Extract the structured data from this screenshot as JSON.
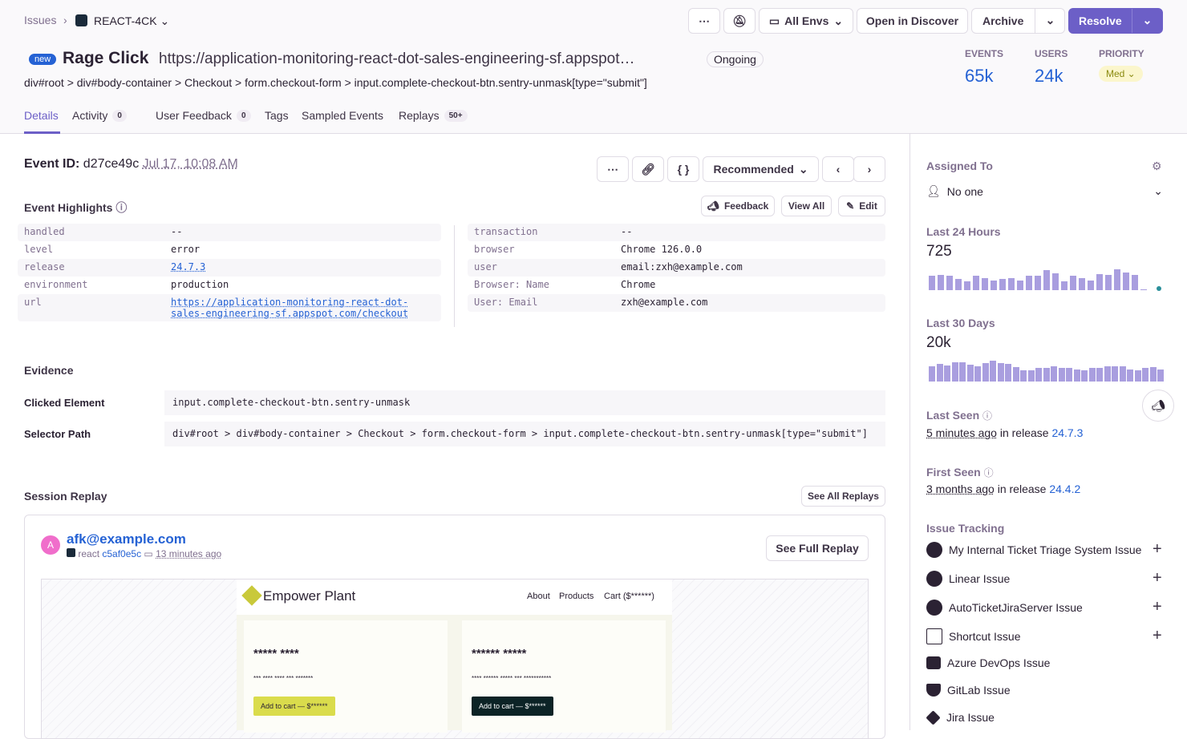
{
  "breadcrumb": {
    "issues": "Issues",
    "project": "REACT-4CK"
  },
  "toolbar": {
    "more": "⋯",
    "mute": "mute",
    "envs": "All Envs",
    "discover": "Open in Discover",
    "archive": "Archive",
    "resolve": "Resolve"
  },
  "issue": {
    "badge": "new",
    "title": "Rage Click",
    "url": "https://application-monitoring-react-dot-sales-engineering-sf.appspot…",
    "status": "Ongoing",
    "path": "div#root > div#body-container > Checkout > form.checkout-form > input.complete-checkout-btn.sentry-unmask[type=\"submit\"]"
  },
  "stats": {
    "events_label": "EVENTS",
    "events": "65k",
    "users_label": "USERS",
    "users": "24k",
    "priority_label": "PRIORITY",
    "priority": "Med"
  },
  "tabs": [
    {
      "label": "Details"
    },
    {
      "label": "Activity",
      "count": "0"
    },
    {
      "label": "User Feedback",
      "count": "0"
    },
    {
      "label": "Tags"
    },
    {
      "label": "Sampled Events"
    },
    {
      "label": "Replays",
      "count": "50+"
    }
  ],
  "event": {
    "id_label": "Event ID:",
    "id": "d27ce49c",
    "time": "Jul 17, 10:08 AM",
    "recommended": "Recommended"
  },
  "highlights": {
    "title": "Event Highlights",
    "feedback": "Feedback",
    "view_all": "View All",
    "edit": "Edit",
    "left": [
      {
        "k": "handled",
        "v": "--"
      },
      {
        "k": "level",
        "v": "error"
      },
      {
        "k": "release",
        "v": "24.7.3"
      },
      {
        "k": "environment",
        "v": "production"
      },
      {
        "k": "url",
        "v": "https://application-monitoring-react-dot-sales-engineering-sf.appspot.com/checkout"
      }
    ],
    "right": [
      {
        "k": "transaction",
        "v": "--"
      },
      {
        "k": "browser",
        "v": "Chrome 126.0.0"
      },
      {
        "k": "user",
        "v": "email:zxh@example.com"
      },
      {
        "k": "Browser: Name",
        "v": "Chrome"
      },
      {
        "k": "User: Email",
        "v": "zxh@example.com"
      }
    ]
  },
  "evidence": {
    "title": "Evidence",
    "clicked_label": "Clicked Element",
    "clicked": "input.complete-checkout-btn.sentry-unmask",
    "selector_label": "Selector Path",
    "selector": "div#root > div#body-container > Checkout > form.checkout-form > input.complete-checkout-btn.sentry-unmask[type=\"submit\"]"
  },
  "replay": {
    "title": "Session Replay",
    "see_all": "See All Replays",
    "user": "afk@example.com",
    "avatar": "A",
    "platform": "react",
    "release": "c5af0e5c",
    "time": "13 minutes ago",
    "see_full": "See Full Replay",
    "site": {
      "brand": "Empower Plant",
      "nav": [
        "About",
        "Products",
        "Cart ($******)"
      ],
      "cards": [
        {
          "title": "***** ****",
          "desc": "*** **** **** *** *******",
          "button": "Add to cart — $******"
        },
        {
          "title": "****** *****",
          "desc": "**** ****** ***** *** ***********",
          "button": "Add to cart — $******"
        }
      ]
    }
  },
  "sidebar": {
    "assigned_label": "Assigned To",
    "assigned": "No one",
    "last24_label": "Last 24 Hours",
    "last24": "725",
    "last24_bars": [
      18,
      19,
      18,
      14,
      11,
      18,
      15,
      12,
      14,
      15,
      12,
      18,
      18,
      25,
      21,
      11,
      18,
      15,
      12,
      20,
      19,
      26,
      22,
      19,
      1
    ],
    "last30_label": "Last 30 Days",
    "last30": "20k",
    "last30_bars": [
      26,
      30,
      28,
      33,
      33,
      29,
      26,
      32,
      36,
      32,
      30,
      25,
      20,
      20,
      24,
      23,
      26,
      24,
      23,
      21,
      20,
      24,
      24,
      27,
      26,
      26,
      21,
      20,
      24,
      25,
      21
    ],
    "last_seen_label": "Last Seen",
    "last_seen": "5 minutes ago",
    "last_seen_mid": "in release",
    "last_seen_release": "24.7.3",
    "first_seen_label": "First Seen",
    "first_seen": "3 months ago",
    "first_seen_mid": "in release",
    "first_seen_release": "24.4.2",
    "tracking_label": "Issue Tracking",
    "tracking": [
      "My Internal Ticket Triage System Issue",
      "Linear Issue",
      "AutoTicketJiraServer Issue",
      "Shortcut Issue",
      "Azure DevOps Issue",
      "GitLab Issue",
      "Jira Issue"
    ]
  },
  "colors": {
    "accent": "#6c5fc7",
    "link": "#2562d4",
    "bar": "#a99edf"
  }
}
